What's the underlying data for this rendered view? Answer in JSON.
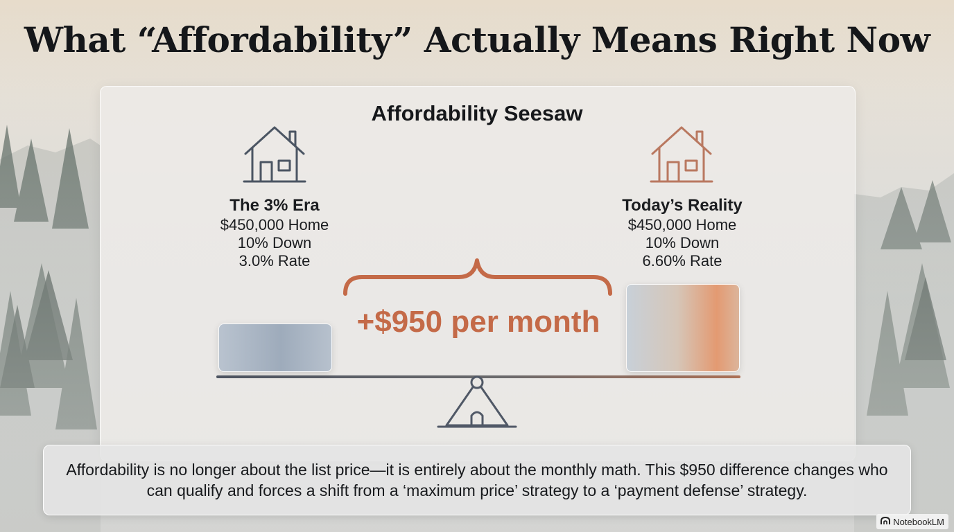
{
  "title": "What “Affordability” Actually Means Right Now",
  "panel_title": "Affordability Seesaw",
  "left": {
    "icon": "house-icon",
    "name": "The 3% Era",
    "price": "$450,000 Home",
    "down": "10% Down",
    "rate": "3.0% Rate"
  },
  "right": {
    "icon": "house-icon",
    "name": "Today’s Reality",
    "price": "$450,000 Home",
    "down": "10% Down",
    "rate": "6.60% Rate"
  },
  "difference": "+$950 per month",
  "summary": "Affordability is no longer about the list price—it is entirely about the monthly math. This $950 difference changes who can qualify and forces a shift from a ‘maximum price’ strategy to a ‘payment defense’ strategy.",
  "brand": "NotebookLM",
  "colors": {
    "accent": "#c46a48",
    "left_house": "#4b5563",
    "right_house": "#b97860",
    "beam": "#4f5663"
  }
}
